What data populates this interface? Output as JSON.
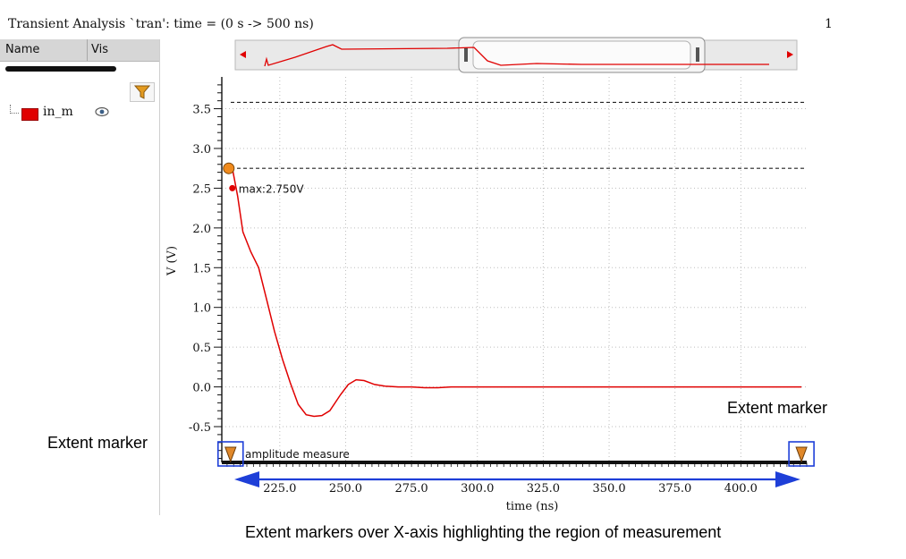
{
  "window": {
    "title": "Transient Analysis `tran': time = (0 s -> 500 ns)",
    "page_number": "1"
  },
  "signal_panel": {
    "columns": {
      "name": "Name",
      "vis": "Vis"
    },
    "signals": [
      {
        "name": "in_m",
        "color": "#e00000",
        "icon": "eye-icon"
      }
    ],
    "filter_icon": "filter-icon"
  },
  "annotations": {
    "extent_marker_left": "Extent marker",
    "extent_marker_right": "Extent marker",
    "caption": "Extent markers over X-axis highlighting the region of measurement"
  },
  "chart_data": {
    "type": "line",
    "xlabel": "time (ns)",
    "ylabel": "V (V)",
    "xlim": [
      203,
      425
    ],
    "ylim": [
      -0.95,
      3.9
    ],
    "x_ticks": [
      225,
      250,
      275,
      300,
      325,
      350,
      375,
      400
    ],
    "x_tick_labels": [
      "225.0",
      "250.0",
      "275.0",
      "300.0",
      "325.0",
      "350.0",
      "375.0",
      "400.0"
    ],
    "y_ticks": [
      -0.5,
      0,
      0.5,
      1,
      1.5,
      2,
      2.5,
      3,
      3.5
    ],
    "y_tick_labels": [
      "-0.5",
      "0.0",
      "0.5",
      "1.0",
      "1.5",
      "2.0",
      "2.5",
      "3.0",
      "3.5"
    ],
    "grid": true,
    "series": [
      {
        "name": "in_m",
        "color": "#e00000",
        "x": [
          207,
          209,
          211,
          214,
          217,
          220,
          223,
          226,
          229,
          232,
          235,
          238,
          241,
          244,
          248,
          251,
          254,
          257,
          261,
          265,
          270,
          275,
          280,
          285,
          290,
          300,
          325,
          350,
          375,
          400,
          423
        ],
        "y": [
          2.75,
          2.4,
          1.95,
          1.7,
          1.5,
          1.1,
          0.7,
          0.35,
          0.05,
          -0.22,
          -0.35,
          -0.37,
          -0.36,
          -0.3,
          -0.1,
          0.03,
          0.09,
          0.08,
          0.03,
          0.01,
          0.0,
          0.0,
          -0.01,
          -0.01,
          0.0,
          0.0,
          0.0,
          0.0,
          0.0,
          0.0,
          0.0
        ]
      }
    ],
    "reference_lines": [
      {
        "y": 3.58,
        "style": "dashed"
      },
      {
        "y": 2.75,
        "style": "dashed"
      }
    ],
    "max_marker": {
      "x": 207,
      "y": 2.75,
      "label": "max:2.750V"
    },
    "measure_label": "amplitude measure",
    "extent_markers": {
      "start": 207,
      "end": 423
    },
    "overview": {
      "window_x_range": [
        203,
        425
      ],
      "full_x_range": [
        0,
        500
      ]
    }
  }
}
